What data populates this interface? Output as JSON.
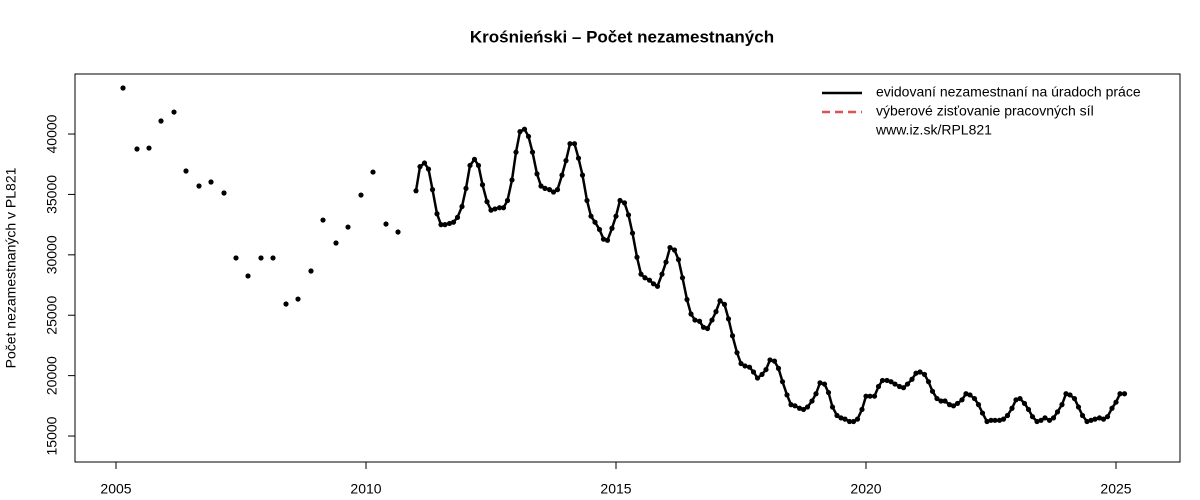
{
  "chart_data": {
    "type": "line",
    "title": "Krośnieński – Počet nezamestnaných",
    "y_label": "Počet nezamestnaných  v PL821",
    "annotation": "www.iz.sk/RPL821",
    "xlim": [
      2004.18,
      2026.28
    ],
    "xticks": [
      2005,
      2010,
      2015,
      2020,
      2025
    ],
    "ylim": [
      12850,
      44970
    ],
    "yticks": [
      15000,
      20000,
      25000,
      30000,
      35000,
      40000
    ],
    "legend": "top-right",
    "series": [
      {
        "name": "evidovaní nezamestnaní na úradoch práce",
        "color": "#000000",
        "line": true,
        "dash": false,
        "markers": true,
        "x": [
          2011.0,
          2011.08,
          2011.17,
          2011.25,
          2011.33,
          2011.42,
          2011.5,
          2011.58,
          2011.67,
          2011.75,
          2011.83,
          2011.92,
          2012.0,
          2012.08,
          2012.17,
          2012.25,
          2012.33,
          2012.42,
          2012.5,
          2012.58,
          2012.67,
          2012.75,
          2012.83,
          2012.92,
          2013.0,
          2013.08,
          2013.17,
          2013.25,
          2013.33,
          2013.42,
          2013.5,
          2013.58,
          2013.67,
          2013.75,
          2013.83,
          2013.92,
          2014.0,
          2014.08,
          2014.17,
          2014.25,
          2014.33,
          2014.42,
          2014.5,
          2014.58,
          2014.67,
          2014.75,
          2014.83,
          2014.92,
          2015.0,
          2015.08,
          2015.17,
          2015.25,
          2015.33,
          2015.42,
          2015.5,
          2015.58,
          2015.67,
          2015.75,
          2015.83,
          2015.92,
          2016.0,
          2016.08,
          2016.17,
          2016.25,
          2016.33,
          2016.42,
          2016.5,
          2016.58,
          2016.67,
          2016.75,
          2016.83,
          2016.92,
          2017.0,
          2017.08,
          2017.17,
          2017.25,
          2017.33,
          2017.42,
          2017.5,
          2017.58,
          2017.67,
          2017.75,
          2017.83,
          2017.92,
          2018.0,
          2018.08,
          2018.17,
          2018.25,
          2018.33,
          2018.42,
          2018.5,
          2018.58,
          2018.67,
          2018.75,
          2018.83,
          2018.92,
          2019.0,
          2019.08,
          2019.17,
          2019.25,
          2019.33,
          2019.42,
          2019.5,
          2019.58,
          2019.67,
          2019.75,
          2019.83,
          2019.92,
          2020.0,
          2020.08,
          2020.17,
          2020.25,
          2020.33,
          2020.42,
          2020.5,
          2020.58,
          2020.67,
          2020.75,
          2020.83,
          2020.92,
          2021.0,
          2021.08,
          2021.17,
          2021.25,
          2021.33,
          2021.42,
          2021.5,
          2021.58,
          2021.67,
          2021.75,
          2021.83,
          2021.92,
          2022.0,
          2022.08,
          2022.17,
          2022.25,
          2022.33,
          2022.42,
          2022.5,
          2022.58,
          2022.67,
          2022.75,
          2022.83,
          2022.92,
          2023.0,
          2023.08,
          2023.17,
          2023.25,
          2023.33,
          2023.42,
          2023.5,
          2023.58,
          2023.67,
          2023.75,
          2023.83,
          2023.92,
          2024.0,
          2024.08,
          2024.17,
          2024.25,
          2024.33,
          2024.42,
          2024.5,
          2024.58,
          2024.67,
          2024.75,
          2024.83,
          2024.92,
          2025.0,
          2025.08,
          2025.17
        ],
        "values": [
          35300,
          37300,
          37600,
          37100,
          35400,
          33400,
          32500,
          32500,
          32600,
          32700,
          33100,
          34000,
          35500,
          37400,
          37900,
          37400,
          35800,
          34400,
          33700,
          33800,
          33900,
          33900,
          34500,
          36200,
          38500,
          40200,
          40400,
          39800,
          38500,
          36700,
          35700,
          35500,
          35400,
          35200,
          35400,
          36600,
          37800,
          39200,
          39200,
          38000,
          36600,
          34500,
          33200,
          32700,
          32100,
          31300,
          31200,
          32200,
          33200,
          34500,
          34300,
          33300,
          31800,
          29800,
          28400,
          28100,
          27900,
          27600,
          27400,
          28400,
          29400,
          30600,
          30400,
          29600,
          28100,
          26300,
          25100,
          24600,
          24500,
          24000,
          23900,
          24600,
          25300,
          26200,
          25900,
          24700,
          23300,
          21900,
          21000,
          20800,
          20700,
          20300,
          19800,
          20100,
          20500,
          21300,
          21200,
          20600,
          19500,
          18400,
          17600,
          17500,
          17300,
          17200,
          17400,
          17900,
          18500,
          19400,
          19300,
          18600,
          17400,
          16700,
          16500,
          16400,
          16200,
          16200,
          16400,
          17200,
          18300,
          18300,
          18300,
          19100,
          19600,
          19600,
          19500,
          19300,
          19100,
          19000,
          19300,
          19700,
          20200,
          20300,
          20100,
          19500,
          18700,
          18100,
          17900,
          17900,
          17600,
          17500,
          17700,
          18000,
          18500,
          18400,
          18100,
          17600,
          16900,
          16200,
          16300,
          16300,
          16300,
          16400,
          16700,
          17300,
          18000,
          18100,
          17700,
          17200,
          16600,
          16200,
          16300,
          16500,
          16300,
          16500,
          17000,
          17600,
          18500,
          18400,
          18100,
          17400,
          16700,
          16200,
          16300,
          16400,
          16500,
          16400,
          16600,
          17300,
          17800,
          18500,
          18500
        ]
      },
      {
        "name": "výberové zisťovanie pracovných síl",
        "color": "#e05050",
        "line": true,
        "dash": true,
        "markers": false,
        "x": [],
        "values": []
      },
      {
        "color": "#000000",
        "line": false,
        "dash": false,
        "markers": true,
        "x": [
          2005.14,
          2005.42,
          2005.66,
          2005.9,
          2006.16,
          2006.4,
          2006.66,
          2006.9,
          2007.16,
          2007.4,
          2007.64,
          2007.9,
          2008.14,
          2008.4,
          2008.64,
          2008.9,
          2009.14,
          2009.4,
          2009.64,
          2009.9,
          2010.14,
          2010.4,
          2010.64
        ],
        "values": [
          43810,
          38760,
          38840,
          41080,
          41820,
          36940,
          35700,
          36030,
          35120,
          29740,
          28250,
          29740,
          29740,
          25930,
          26340,
          28660,
          32880,
          30980,
          32300,
          34950,
          36850,
          32550,
          31890
        ]
      }
    ]
  }
}
